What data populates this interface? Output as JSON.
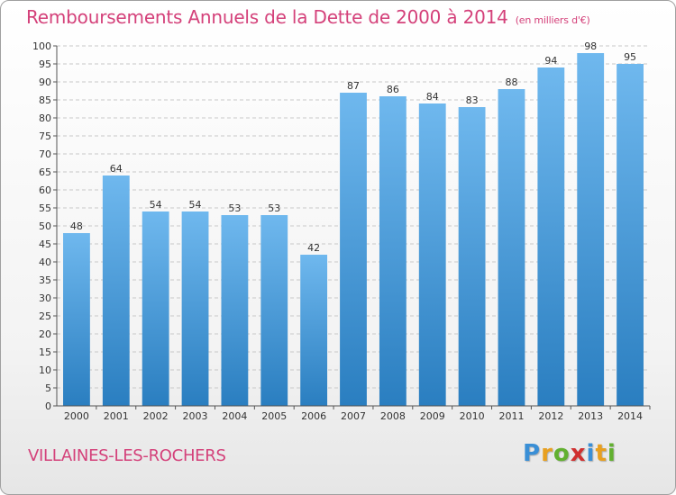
{
  "title": {
    "main": "Remboursements Annuels de la Dette de 2000 à 2014",
    "unit": "(en milliers d'€)"
  },
  "place": "VILLAINES-LES-ROCHERS",
  "logo": {
    "letters": [
      "P",
      "r",
      "o",
      "x",
      "i",
      "t",
      "i"
    ],
    "colors": [
      "#3a8fd6",
      "#e8a020",
      "#62b030",
      "#d03030",
      "#3a8fd6",
      "#e8a020",
      "#62b030"
    ]
  },
  "colors": {
    "bar_light": "#6fb8ee",
    "bar_dark": "#2a7ec0",
    "title": "#d4417a"
  },
  "chart_data": {
    "type": "bar",
    "title": "Remboursements Annuels de la Dette de 2000 à 2014",
    "xlabel": "",
    "ylabel": "",
    "categories": [
      "2000",
      "2001",
      "2002",
      "2003",
      "2004",
      "2005",
      "2006",
      "2007",
      "2008",
      "2009",
      "2010",
      "2011",
      "2012",
      "2013",
      "2014"
    ],
    "values": [
      48,
      64,
      54,
      54,
      53,
      53,
      42,
      87,
      86,
      84,
      83,
      88,
      94,
      98,
      95
    ],
    "ylim": [
      0,
      100
    ],
    "ytick_step": 5,
    "grid": true,
    "data_labels": true
  }
}
